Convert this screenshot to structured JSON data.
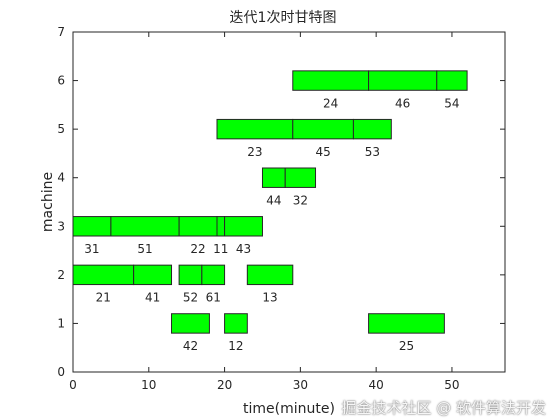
{
  "chart_data": {
    "type": "gantt",
    "title": "迭代1次时甘特图",
    "xlabel": "time(minute)",
    "ylabel": "machine",
    "xlim": [
      0,
      57
    ],
    "ylim": [
      0,
      7
    ],
    "xticks": [
      0,
      10,
      20,
      30,
      40,
      50
    ],
    "yticks": [
      0,
      1,
      2,
      3,
      4,
      5,
      6,
      7
    ],
    "grid": false,
    "bar_color": "#00ff00",
    "bars": [
      {
        "machine": 6,
        "start": 29,
        "end": 39,
        "label": "24"
      },
      {
        "machine": 6,
        "start": 39,
        "end": 48,
        "label": "46"
      },
      {
        "machine": 6,
        "start": 48,
        "end": 52,
        "label": "54"
      },
      {
        "machine": 5,
        "start": 19,
        "end": 29,
        "label": "23"
      },
      {
        "machine": 5,
        "start": 29,
        "end": 37,
        "label": "45"
      },
      {
        "machine": 5,
        "start": 37,
        "end": 42,
        "label": "53"
      },
      {
        "machine": 4,
        "start": 25,
        "end": 28,
        "label": "44"
      },
      {
        "machine": 4,
        "start": 28,
        "end": 32,
        "label": "32"
      },
      {
        "machine": 3,
        "start": 0,
        "end": 5,
        "label": "31"
      },
      {
        "machine": 3,
        "start": 5,
        "end": 14,
        "label": "51"
      },
      {
        "machine": 3,
        "start": 14,
        "end": 19,
        "label": "22"
      },
      {
        "machine": 3,
        "start": 19,
        "end": 20,
        "label": "11"
      },
      {
        "machine": 3,
        "start": 20,
        "end": 25,
        "label": "43"
      },
      {
        "machine": 2,
        "start": 0,
        "end": 8,
        "label": "21"
      },
      {
        "machine": 2,
        "start": 8,
        "end": 13,
        "label": "41"
      },
      {
        "machine": 2,
        "start": 14,
        "end": 17,
        "label": "52"
      },
      {
        "machine": 2,
        "start": 17,
        "end": 20,
        "label": "61"
      },
      {
        "machine": 2,
        "start": 23,
        "end": 29,
        "label": "13"
      },
      {
        "machine": 1,
        "start": 13,
        "end": 18,
        "label": "42"
      },
      {
        "machine": 1,
        "start": 20,
        "end": 23,
        "label": "12"
      },
      {
        "machine": 1,
        "start": 39,
        "end": 49,
        "label": "25"
      }
    ]
  },
  "watermark": "掘金技术社区 @ 软件算法开发"
}
